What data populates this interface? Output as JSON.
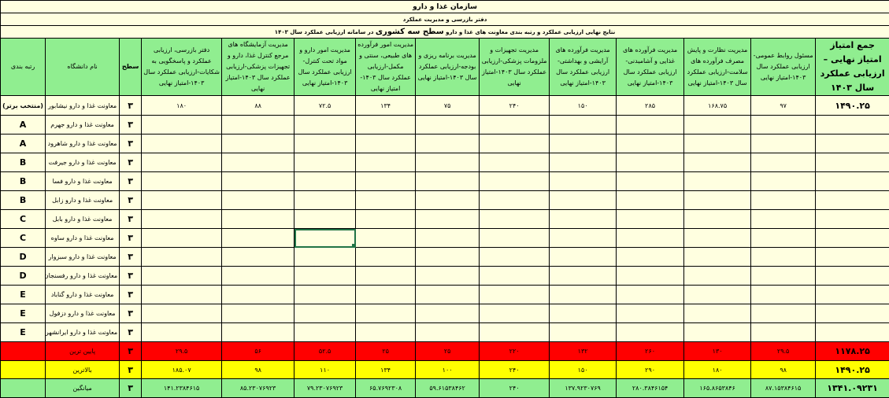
{
  "titles": {
    "org": "سازمان غذا و دارو",
    "office": "دفتر بازرسی و مدیریت عملکرد",
    "report_pre": "نتایج نهایی ارزیابی عملکرد و رتبه بندی معاونت های غذا و دارو",
    "report_bold": "سطح سه کشوری",
    "report_post": "در سامانه ارزیابی عملکرد سال ۱۴۰۳"
  },
  "colors": {
    "header": "#90ee90",
    "cell": "#ffffe0",
    "lowest": "#ff0000",
    "highest": "#ffff00",
    "average": "#90ee90",
    "selection": "#217346"
  },
  "columns": [
    "جمع امتیاز امتیاز نهایی – ارزیابی عملکرد سال ۱۴۰۳",
    "مسئول روابط عمومی-ارزیابی عملکرد سال ۱۴۰۳-امتیاز نهایی",
    "مدیریت نظارت و پایش مصرف فرآورده های سلامت-ارزیابی عملکرد سال ۱۴۰۳-امتیاز نهایی",
    "مدیریت فرآورده های غذایی و آشامیدنی-ارزیابی عملکرد سال ۱۴۰۳-امتیاز نهایی",
    "مدیریت فرآورده های آرایشی و بهداشتی-ارزیابی عملکرد سال ۱۴۰۳-امتیاز نهایی",
    "مدیریت تجهیزات و ملزومات پزشکی-ارزیابی عملکرد سال ۱۴۰۳-امتیاز نهایی",
    "مدیریت برنامه ریزی و بودجه-ارزیابی عملکرد سال ۱۴۰۳-امتیاز نهایی",
    "مدیریت امور فرآورده های طبیعی، سنتی و مکمل-ارزیابی عملکرد سال ۱۴۰۳-امتیاز نهایی",
    "مدیریت امور دارو و مواد تحت کنترل-ارزیابی عملکرد سال ۱۴۰۳-امتیاز نهایی",
    "مدیریت آزمایشگاه های مرجع کنترل غذا، دارو و تجهیزات پزشکی-ارزیابی عملکرد سال ۱۴۰۳-امتیاز نهایی",
    "دفتر بازرسی، ارزیابی عملکرد و پاسخگویی به شکایات-ارزیابی عملکرد سال ۱۴۰۳-امتیاز نهایی",
    "سطح",
    "نام دانشگاه",
    "رتبه بندی"
  ],
  "rows": [
    {
      "cells": [
        "۱۴۹۰.۲۵",
        "۹۷",
        "۱۶۸.۷۵",
        "۲۸۵",
        "۱۵۰",
        "۲۴۰",
        "۷۵",
        "۱۳۴",
        "۷۲.۵",
        "۸۸",
        "۱۸۰",
        "۳",
        "معاونت غذا و دارو نیشابور",
        "(منتخب برتر)"
      ]
    },
    {
      "cells": [
        "",
        "",
        "",
        "",
        "",
        "",
        "",
        "",
        "",
        "",
        "",
        "۳",
        "معاونت غذا و دارو جهرم",
        "A"
      ]
    },
    {
      "cells": [
        "",
        "",
        "",
        "",
        "",
        "",
        "",
        "",
        "",
        "",
        "",
        "۳",
        "معاونت غذا و دارو شاهرود",
        "A"
      ]
    },
    {
      "cells": [
        "",
        "",
        "",
        "",
        "",
        "",
        "",
        "",
        "",
        "",
        "",
        "۳",
        "معاونت غذا و دارو جیرفت",
        "B"
      ]
    },
    {
      "cells": [
        "",
        "",
        "",
        "",
        "",
        "",
        "",
        "",
        "",
        "",
        "",
        "۳",
        "معاونت غذا و دارو فسا",
        "B"
      ]
    },
    {
      "cells": [
        "",
        "",
        "",
        "",
        "",
        "",
        "",
        "",
        "",
        "",
        "",
        "۳",
        "معاونت غذا و دارو زابل",
        "B"
      ]
    },
    {
      "cells": [
        "",
        "",
        "",
        "",
        "",
        "",
        "",
        "",
        "",
        "",
        "",
        "۳",
        "معاونت غذا و دارو بابل",
        "C"
      ]
    },
    {
      "cells": [
        "",
        "",
        "",
        "",
        "",
        "",
        "",
        "",
        "",
        "",
        "",
        "۳",
        "معاونت غذا و دارو ساوه",
        "C"
      ]
    },
    {
      "cells": [
        "",
        "",
        "",
        "",
        "",
        "",
        "",
        "",
        "",
        "",
        "",
        "۳",
        "معاونت غذا و دارو سبزوار",
        "D"
      ]
    },
    {
      "cells": [
        "",
        "",
        "",
        "",
        "",
        "",
        "",
        "",
        "",
        "",
        "",
        "۳",
        "معاونت غذا و دارو رفسنجان",
        "D"
      ]
    },
    {
      "cells": [
        "",
        "",
        "",
        "",
        "",
        "",
        "",
        "",
        "",
        "",
        "",
        "۳",
        "معاونت غذا و دارو گناباد",
        "E"
      ]
    },
    {
      "cells": [
        "",
        "",
        "",
        "",
        "",
        "",
        "",
        "",
        "",
        "",
        "",
        "۳",
        "معاونت غذا و دارو دزفول",
        "E"
      ]
    },
    {
      "cells": [
        "",
        "",
        "",
        "",
        "",
        "",
        "",
        "",
        "",
        "",
        "",
        "۳",
        "معاونت غذا و دارو ایرانشهر",
        "E"
      ]
    }
  ],
  "summary": [
    {
      "kind": "red",
      "cells": [
        "۱۱۷۸.۲۵",
        "۲۹.۵",
        "۱۳۰",
        "۲۶۰",
        "۱۳۲",
        "۲۲۰",
        "۲۵",
        "۲۵",
        "۵۲.۵",
        "۵۶",
        "۲۹.۵",
        "۳",
        "پایین ترین",
        ""
      ]
    },
    {
      "kind": "yellow",
      "cells": [
        "۱۴۹۰.۲۵",
        "۹۸",
        "۱۸۰",
        "۲۹۰",
        "۱۵۰",
        "۲۴۰",
        "۱۰۰",
        "۱۳۴",
        "۱۱۰",
        "۹۸",
        "۱۸۵.۰۷",
        "۳",
        "بالاترین",
        ""
      ]
    },
    {
      "kind": "green",
      "cells": [
        "۱۳۴۱.۰۹۲۳۱",
        "۸۷.۱۵۳۸۴۶۱۵",
        "۱۶۵.۸۶۵۳۸۴۶",
        "۲۸۰.۳۸۴۶۱۵۴",
        "۱۳۷.۹۲۳۰۷۶۹",
        "۲۴۰",
        "۵۹.۶۱۵۳۸۴۶۲",
        "۶۵.۷۶۹۲۳۰۸",
        "۷۹.۲۳۰۷۶۹۲۳",
        "۸۵.۲۳۰۷۶۹۲۳",
        "۱۴۱.۲۳۸۴۶۱۵",
        "۳",
        "میانگین",
        ""
      ]
    }
  ],
  "selected_cell": {
    "row": 7,
    "col": 8
  }
}
